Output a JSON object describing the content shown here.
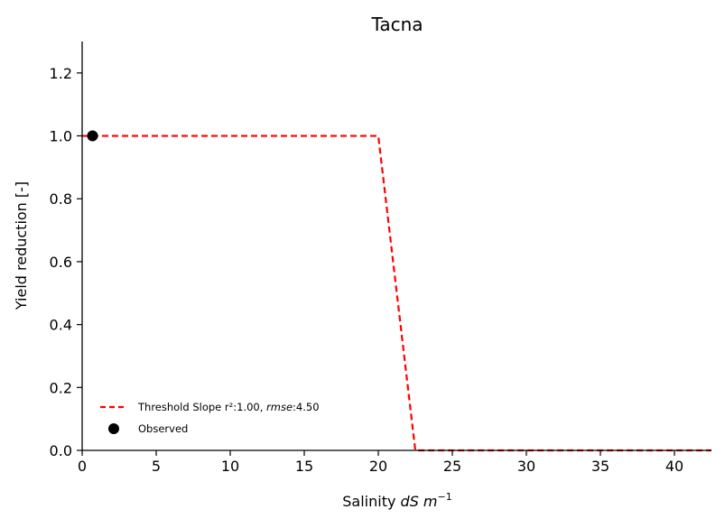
{
  "chart_data": {
    "type": "line",
    "title": "Tacna",
    "xlabel_prefix": "Salinity ",
    "xlabel_math": "dS m",
    "xlabel_sup": "−1",
    "ylabel": "Yield reduction [-]",
    "xlim": [
      0,
      42.5
    ],
    "ylim": [
      0,
      1.3
    ],
    "xticks": [
      0,
      5,
      10,
      15,
      20,
      25,
      30,
      35,
      40
    ],
    "yticks": [
      0.0,
      0.2,
      0.4,
      0.6,
      0.8,
      1.0,
      1.2
    ],
    "xtick_labels": [
      "0",
      "5",
      "10",
      "15",
      "20",
      "25",
      "30",
      "35",
      "40"
    ],
    "ytick_labels": [
      "0.0",
      "0.2",
      "0.4",
      "0.6",
      "0.8",
      "1.0",
      "1.2"
    ],
    "grid": false,
    "legend_position": "lower-left",
    "series": [
      {
        "name": "Threshold Slope",
        "legend_parts": [
          {
            "text": "Threshold Slope ",
            "italic": false
          },
          {
            "text": "r²",
            "italic": false
          },
          {
            "text": ":1.00, ",
            "italic": false
          },
          {
            "text": "rmse",
            "italic": true
          },
          {
            "text": ":4.50",
            "italic": false
          }
        ],
        "style": "dashed",
        "color": "#ff0000",
        "x": [
          0,
          20,
          22.5,
          42.5
        ],
        "y": [
          1.0,
          1.0,
          0.0,
          0.0
        ]
      },
      {
        "name": "Observed",
        "style": "marker",
        "color": "#000000",
        "x": [
          0.7
        ],
        "y": [
          1.0
        ]
      }
    ]
  }
}
